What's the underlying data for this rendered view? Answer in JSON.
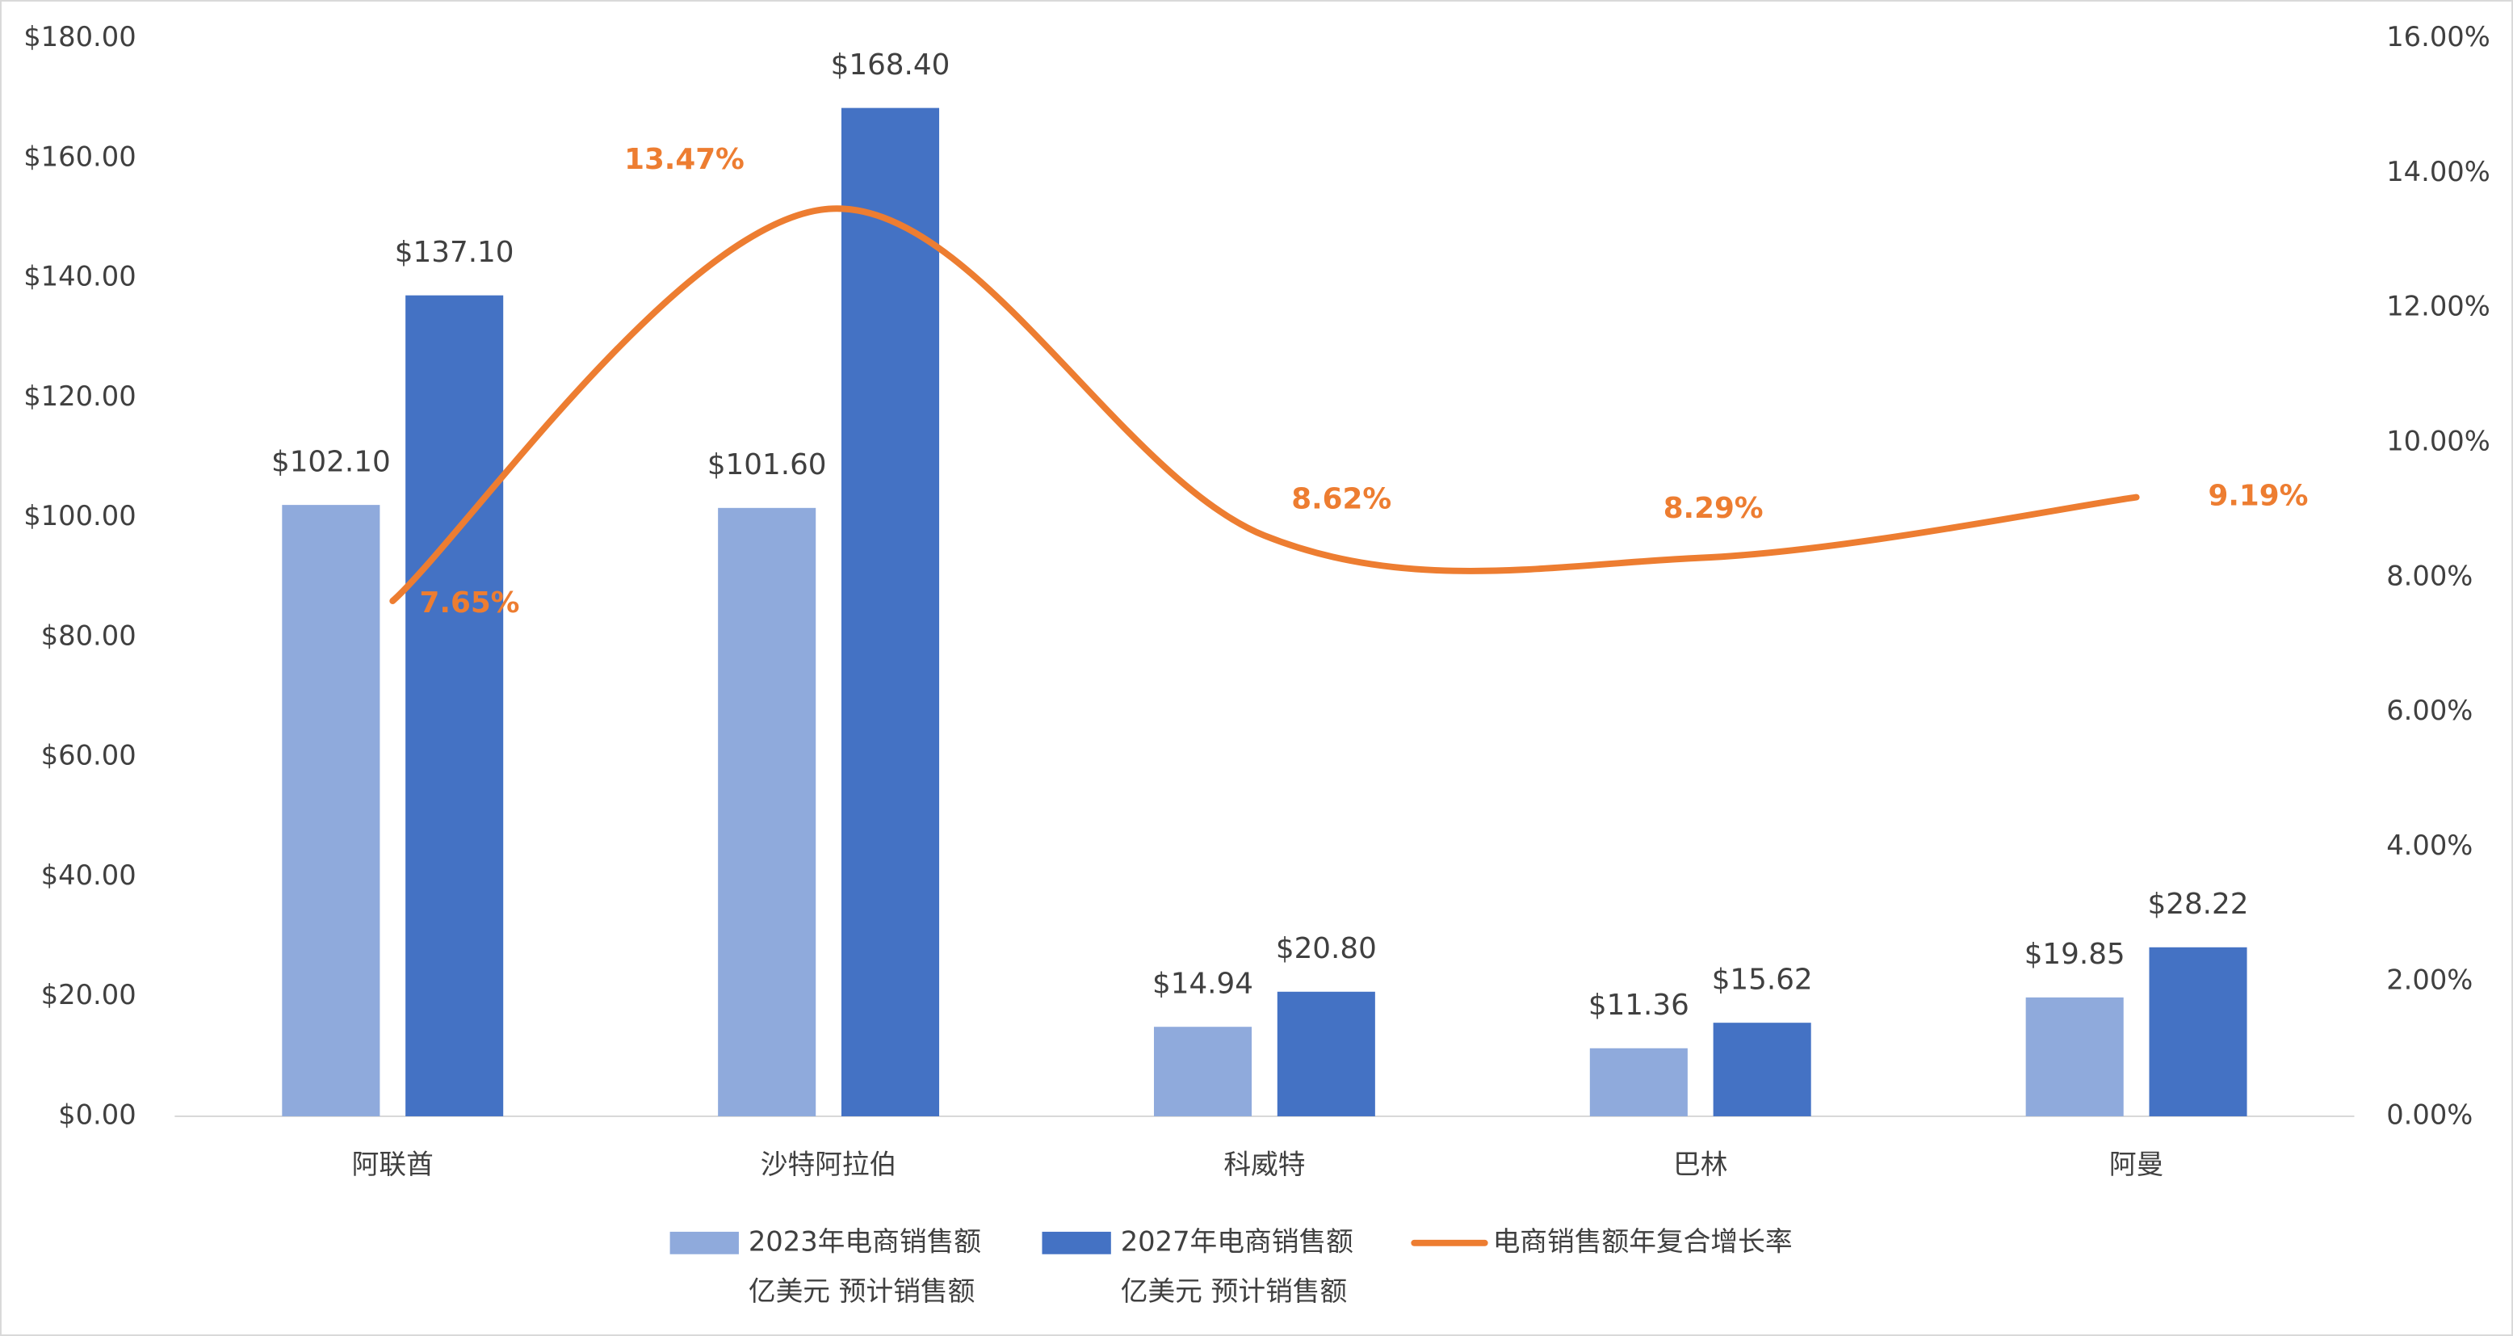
{
  "chart_data": {
    "type": "bar-line",
    "categories": [
      "阿联酋",
      "沙特阿拉伯",
      "科威特",
      "巴林",
      "阿曼"
    ],
    "series": [
      {
        "name": "2023年电商销售额",
        "name_note": "亿美元 预计销售额",
        "color": "#8FAADC",
        "type": "bar",
        "values": [
          102.1,
          101.6,
          14.94,
          11.36,
          19.85
        ],
        "value_labels": [
          "$102.10",
          "$101.60",
          "$14.94",
          "$11.36",
          "$19.85"
        ]
      },
      {
        "name": "2027年电商销售额",
        "name_note": "亿美元 预计销售额",
        "color": "#4472C4",
        "type": "bar",
        "values": [
          137.1,
          168.4,
          20.8,
          15.62,
          28.22
        ],
        "value_labels": [
          "$137.10",
          "$168.40",
          "$20.80",
          "$15.62",
          "$28.22"
        ]
      },
      {
        "name": "电商销售额年复合增长率",
        "color": "#ED7D31",
        "type": "line",
        "axis": "y2",
        "values": [
          7.65,
          13.47,
          8.62,
          8.29,
          9.19
        ],
        "value_labels": [
          "7.65%",
          "13.47%",
          "8.62%",
          "8.29%",
          "9.19%"
        ]
      }
    ],
    "ylim": [
      0,
      180
    ],
    "yticks": [
      {
        "value": 0,
        "label": "$0.00"
      },
      {
        "value": 20,
        "label": "$20.00"
      },
      {
        "value": 40,
        "label": "$40.00"
      },
      {
        "value": 60,
        "label": "$60.00"
      },
      {
        "value": 80,
        "label": "$80.00"
      },
      {
        "value": 100,
        "label": "$100.00"
      },
      {
        "value": 120,
        "label": "$120.00"
      },
      {
        "value": 140,
        "label": "$140.00"
      },
      {
        "value": 160,
        "label": "$160.00"
      },
      {
        "value": 180,
        "label": "$180.00"
      }
    ],
    "y2lim": [
      0,
      16
    ],
    "y2ticks": [
      {
        "value": 0,
        "label": "0.00%"
      },
      {
        "value": 2,
        "label": "2.00%"
      },
      {
        "value": 4,
        "label": "4.00%"
      },
      {
        "value": 6,
        "label": "6.00%"
      },
      {
        "value": 8,
        "label": "8.00%"
      },
      {
        "value": 10,
        "label": "10.00%"
      },
      {
        "value": 12,
        "label": "12.00%"
      },
      {
        "value": 14,
        "label": "14.00%"
      },
      {
        "value": 16,
        "label": "16.00%"
      }
    ],
    "grid": false
  }
}
